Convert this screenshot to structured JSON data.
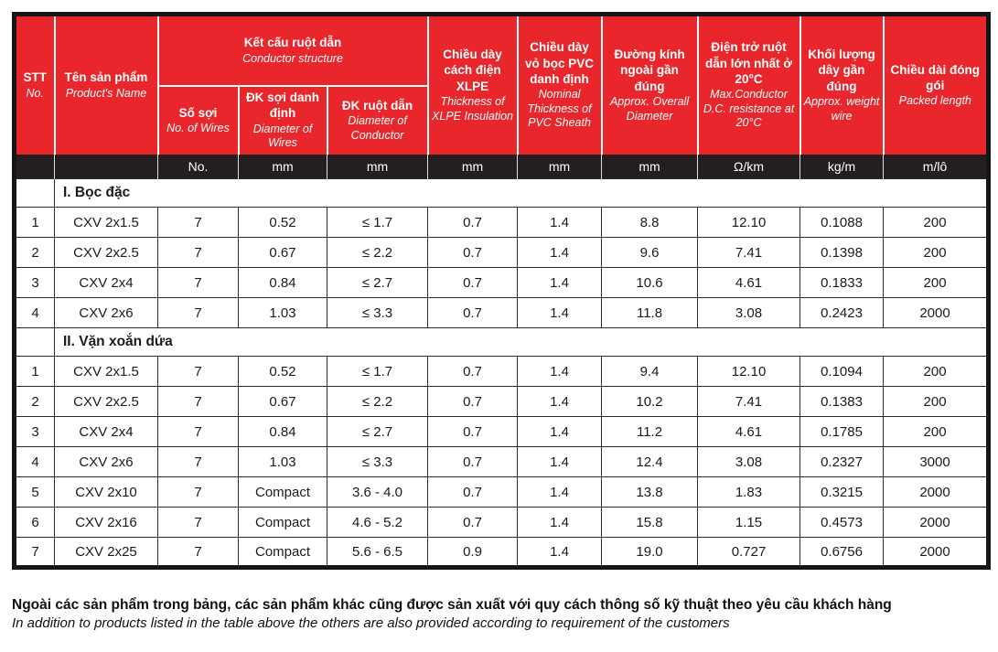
{
  "colors": {
    "header_red": "#e8262b",
    "bar_black": "#231f20"
  },
  "header": {
    "stt": {
      "vi": "STT",
      "en": "No."
    },
    "product": {
      "vi": "Tên sản phẩm",
      "en": "Product's Name"
    },
    "conductor_group": {
      "vi": "Kết cấu ruột dẫn",
      "en": "Conductor structure"
    },
    "wires": {
      "vi": "Số sợi",
      "en": "No. of Wires"
    },
    "wire_diameter": {
      "vi": "ĐK sợi danh định",
      "en": "Diameter of Wires"
    },
    "conductor_diameter": {
      "vi": "ĐK ruột dẫn",
      "en": "Diameter of Conductor"
    },
    "xlpe": {
      "vi": "Chiều dày cách điện XLPE",
      "en": "Thickness of XLPE Insulation"
    },
    "pvc": {
      "vi": "Chiều dày vỏ bọc PVC danh định",
      "en": "Nominal Thickness of PVC Sheath"
    },
    "overall_diameter": {
      "vi": "Đường kính ngoài gần đúng",
      "en": "Approx. Overall Diameter"
    },
    "resistance": {
      "vi": "Điện trở ruột dẫn lớn nhất ở 20°C",
      "en": "Max.Conductor D.C. resistance at 20°C"
    },
    "weight": {
      "vi": "Khối lượng dây gần đúng",
      "en": "Approx. weight wire"
    },
    "packed_length": {
      "vi": "Chiều dài đóng gói",
      "en": "Packed length"
    }
  },
  "units": [
    "",
    "",
    "No.",
    "mm",
    "mm",
    "mm",
    "mm",
    "mm",
    "Ω/km",
    "kg/m",
    "m/lô"
  ],
  "sections": [
    {
      "title": "I. Bọc đặc",
      "rows": [
        [
          "1",
          "CXV 2x1.5",
          "7",
          "0.52",
          "≤ 1.7",
          "0.7",
          "1.4",
          "8.8",
          "12.10",
          "0.1088",
          "200"
        ],
        [
          "2",
          "CXV 2x2.5",
          "7",
          "0.67",
          "≤ 2.2",
          "0.7",
          "1.4",
          "9.6",
          "7.41",
          "0.1398",
          "200"
        ],
        [
          "3",
          "CXV 2x4",
          "7",
          "0.84",
          "≤ 2.7",
          "0.7",
          "1.4",
          "10.6",
          "4.61",
          "0.1833",
          "200"
        ],
        [
          "4",
          "CXV 2x6",
          "7",
          "1.03",
          "≤ 3.3",
          "0.7",
          "1.4",
          "11.8",
          "3.08",
          "0.2423",
          "2000"
        ]
      ]
    },
    {
      "title": "II. Vặn xoắn dứa",
      "rows": [
        [
          "1",
          "CXV 2x1.5",
          "7",
          "0.52",
          "≤ 1.7",
          "0.7",
          "1.4",
          "9.4",
          "12.10",
          "0.1094",
          "200"
        ],
        [
          "2",
          "CXV 2x2.5",
          "7",
          "0.67",
          "≤ 2.2",
          "0.7",
          "1.4",
          "10.2",
          "7.41",
          "0.1383",
          "200"
        ],
        [
          "3",
          "CXV 2x4",
          "7",
          "0.84",
          "≤ 2.7",
          "0.7",
          "1.4",
          "11.2",
          "4.61",
          "0.1785",
          "200"
        ],
        [
          "4",
          "CXV 2x6",
          "7",
          "1.03",
          "≤ 3.3",
          "0.7",
          "1.4",
          "12.4",
          "3.08",
          "0.2327",
          "3000"
        ],
        [
          "5",
          "CXV 2x10",
          "7",
          "Compact",
          "3.6 - 4.0",
          "0.7",
          "1.4",
          "13.8",
          "1.83",
          "0.3215",
          "2000"
        ],
        [
          "6",
          "CXV 2x16",
          "7",
          "Compact",
          "4.6 - 5.2",
          "0.7",
          "1.4",
          "15.8",
          "1.15",
          "0.4573",
          "2000"
        ],
        [
          "7",
          "CXV 2x25",
          "7",
          "Compact",
          "5.6 - 6.5",
          "0.9",
          "1.4",
          "19.0",
          "0.727",
          "0.6756",
          "2000"
        ]
      ]
    }
  ],
  "footer": {
    "vi": "Ngoài các sản phẩm trong bảng, các sản phẩm khác cũng được sản xuất với quy cách thông số kỹ thuật theo yêu cầu khách hàng",
    "en": "In addition to products listed in the table above the others are also provided according to requirement of the customers"
  }
}
